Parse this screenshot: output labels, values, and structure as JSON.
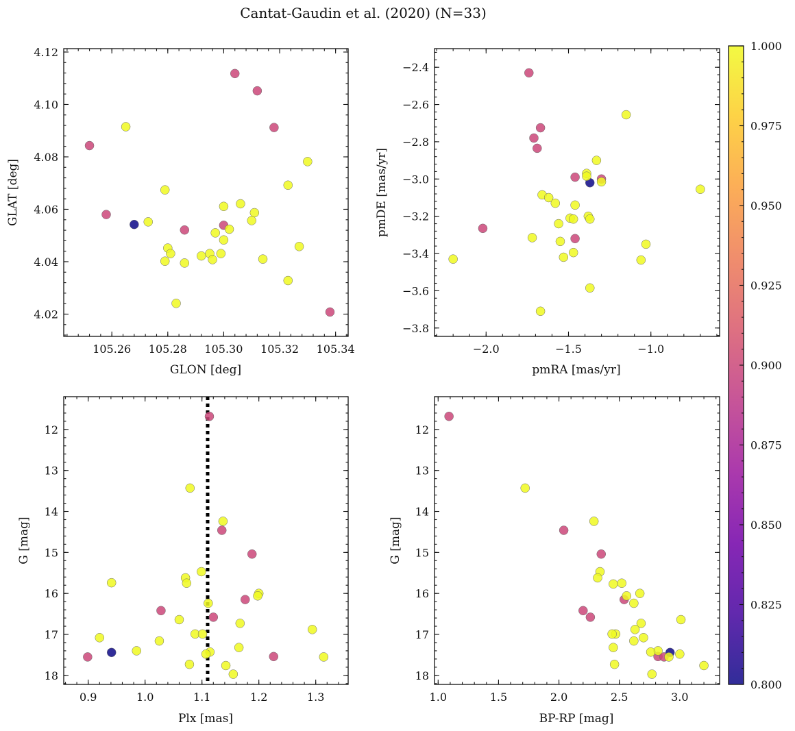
{
  "figure": {
    "title": "Cantat-Gaudin et al. (2020) (N=33)"
  },
  "colorbar": {
    "min": 0.8,
    "max": 1.0,
    "ticks": [
      0.8,
      0.825,
      0.85,
      0.875,
      0.9,
      0.925,
      0.95,
      0.975,
      1.0
    ],
    "tick_labels": [
      "0.800",
      "0.825",
      "0.850",
      "0.875",
      "0.900",
      "0.925",
      "0.950",
      "0.975",
      "1.000"
    ],
    "colormap": "plasma",
    "colormap_stops": [
      "#0d0887",
      "#46039f",
      "#7201a8",
      "#9c179e",
      "#bd3786",
      "#d8576b",
      "#ed7953",
      "#fb9f3a",
      "#fdca26",
      "#f0f921"
    ]
  },
  "stars": {
    "membership_prob": [
      0.9,
      0.9,
      0.9,
      0.9,
      0.9,
      0.9,
      0.9,
      0.9,
      0.8,
      1.0,
      1.0,
      1.0,
      1.0,
      1.0,
      1.0,
      1.0,
      1.0,
      1.0,
      1.0,
      1.0,
      1.0,
      1.0,
      1.0,
      1.0,
      1.0,
      1.0,
      1.0,
      1.0,
      1.0,
      1.0,
      1.0,
      1.0,
      1.0
    ]
  },
  "chart_data": [
    {
      "id": "radec",
      "type": "scatter",
      "title": "",
      "xlabel": "GLON [deg]",
      "ylabel": "GLAT [deg]",
      "xlim": [
        105.2428,
        105.3445
      ],
      "ylim": [
        4.0115,
        4.1213
      ],
      "invert_y": false,
      "xticks": [
        105.26,
        105.28,
        105.3,
        105.32,
        105.34
      ],
      "xtick_labels": [
        "105.26",
        "105.28",
        "105.30",
        "105.32",
        "105.34"
      ],
      "yticks": [
        4.02,
        4.04,
        4.06,
        4.08,
        4.1,
        4.12
      ],
      "ytick_labels": [
        "4.02",
        "4.04",
        "4.06",
        "4.08",
        "4.10",
        "4.12"
      ],
      "x": [
        105.304,
        105.312,
        105.318,
        105.252,
        105.258,
        105.286,
        105.3,
        105.338,
        105.268,
        105.265,
        105.33,
        105.323,
        105.279,
        105.306,
        105.3,
        105.311,
        105.273,
        105.31,
        105.302,
        105.297,
        105.3,
        105.28,
        105.281,
        105.327,
        105.292,
        105.295,
        105.296,
        105.279,
        105.286,
        105.299,
        105.314,
        105.323,
        105.283
      ],
      "y": [
        4.1118,
        4.1052,
        4.0912,
        4.0843,
        4.058,
        4.0521,
        4.0539,
        4.0208,
        4.0542,
        4.0915,
        4.0782,
        4.0692,
        4.0674,
        4.0621,
        4.0611,
        4.0587,
        4.0552,
        4.0557,
        4.0524,
        4.051,
        4.0483,
        4.0452,
        4.0431,
        4.0458,
        4.0422,
        4.0431,
        4.0408,
        4.0402,
        4.0395,
        4.0431,
        4.041,
        4.0328,
        4.0241
      ]
    },
    {
      "id": "pm",
      "type": "scatter",
      "title": "",
      "xlabel": "pmRA [mas/yr]",
      "ylabel": "pmDE [mas/yr]",
      "xlim": [
        -2.313,
        -0.583
      ],
      "ylim": [
        -3.845,
        -2.3
      ],
      "invert_y": false,
      "xticks": [
        -2.0,
        -1.5,
        -1.0
      ],
      "xtick_labels": [
        "−2.0",
        "−1.5",
        "−1.0"
      ],
      "yticks": [
        -3.8,
        -3.6,
        -3.4,
        -3.2,
        -3.0,
        -2.8,
        -2.6,
        -2.4
      ],
      "ytick_labels": [
        "−3.8",
        "−3.6",
        "−3.4",
        "−3.2",
        "−3.0",
        "−2.8",
        "−2.6",
        "−2.4"
      ],
      "x": [
        -1.74,
        -1.71,
        -1.67,
        -1.69,
        -2.02,
        -1.46,
        -1.46,
        -1.3,
        -1.37,
        -1.15,
        -0.7,
        -1.33,
        -1.39,
        -1.39,
        -1.3,
        -1.66,
        -1.62,
        -1.58,
        -1.46,
        -1.49,
        -1.47,
        -1.38,
        -1.37,
        -1.56,
        -1.72,
        -1.55,
        -1.47,
        -1.53,
        -1.03,
        -2.2,
        -1.06,
        -1.37,
        -1.67
      ],
      "y": [
        -2.43,
        -2.78,
        -2.725,
        -2.835,
        -3.265,
        -2.99,
        -3.32,
        -3.0,
        -3.02,
        -2.655,
        -3.055,
        -2.9,
        -2.97,
        -2.985,
        -3.015,
        -3.085,
        -3.1,
        -3.13,
        -3.14,
        -3.21,
        -3.215,
        -3.2,
        -3.215,
        -3.24,
        -3.315,
        -3.335,
        -3.395,
        -3.42,
        -3.35,
        -3.43,
        -3.435,
        -3.585,
        -3.71
      ]
    },
    {
      "id": "plx_g",
      "type": "scatter",
      "title": "",
      "xlabel": "Plx [mas]",
      "ylabel": "G [mag]",
      "xlim": [
        0.857,
        1.357
      ],
      "ylim": [
        11.2,
        18.22
      ],
      "invert_y": true,
      "reference_line_x": 1.11,
      "xticks": [
        0.9,
        1.0,
        1.1,
        1.2,
        1.3
      ],
      "xtick_labels": [
        "0.9",
        "1.0",
        "1.1",
        "1.2",
        "1.3"
      ],
      "yticks": [
        12,
        13,
        14,
        15,
        16,
        17,
        18
      ],
      "ytick_labels": [
        "12",
        "13",
        "14",
        "15",
        "16",
        "17",
        "18"
      ],
      "x": [
        1.113,
        1.135,
        1.188,
        1.176,
        1.028,
        1.12,
        1.226,
        0.899,
        0.941,
        1.079,
        1.137,
        1.099,
        1.071,
        1.073,
        1.2,
        1.198,
        0.941,
        1.111,
        1.06,
        1.167,
        1.025,
        0.92,
        1.294,
        1.088,
        1.101,
        0.985,
        1.165,
        1.114,
        1.107,
        1.314,
        1.078,
        1.142,
        1.155
      ],
      "y": [
        11.68,
        14.46,
        15.04,
        16.15,
        16.42,
        16.58,
        17.54,
        17.55,
        17.44,
        13.43,
        14.24,
        15.47,
        15.62,
        15.75,
        16.0,
        16.06,
        15.74,
        16.24,
        16.64,
        16.73,
        17.16,
        17.08,
        16.88,
        16.99,
        16.99,
        17.4,
        17.32,
        17.43,
        17.48,
        17.55,
        17.73,
        17.76,
        17.97
      ]
    },
    {
      "id": "cmd",
      "type": "scatter",
      "title": "",
      "xlabel": "BP-RP [mag]",
      "ylabel": "G [mag]",
      "xlim": [
        0.97,
        3.33
      ],
      "ylim": [
        11.2,
        18.22
      ],
      "invert_y": true,
      "xticks": [
        1.0,
        1.5,
        2.0,
        2.5,
        3.0
      ],
      "xtick_labels": [
        "1.0",
        "1.5",
        "2.0",
        "2.5",
        "3.0"
      ],
      "yticks": [
        12,
        13,
        14,
        15,
        16,
        17,
        18
      ],
      "ytick_labels": [
        "12",
        "13",
        "14",
        "15",
        "16",
        "17",
        "18"
      ],
      "x": [
        1.09,
        2.04,
        2.35,
        2.54,
        2.2,
        2.26,
        2.82,
        2.87,
        2.92,
        1.72,
        2.29,
        2.34,
        2.32,
        2.52,
        2.67,
        2.56,
        2.45,
        2.62,
        3.01,
        2.68,
        2.63,
        2.62,
        2.7,
        2.47,
        2.44,
        2.45,
        2.82,
        2.76,
        2.91,
        3.0,
        2.46,
        3.2,
        2.77
      ],
      "y": [
        11.68,
        14.46,
        15.04,
        16.15,
        16.42,
        16.58,
        17.54,
        17.55,
        17.44,
        13.43,
        14.24,
        15.47,
        15.62,
        15.75,
        16.0,
        16.06,
        15.77,
        16.24,
        16.64,
        16.73,
        16.88,
        17.16,
        17.08,
        16.99,
        16.99,
        17.32,
        17.4,
        17.43,
        17.55,
        17.48,
        17.73,
        17.76,
        17.97
      ]
    }
  ]
}
